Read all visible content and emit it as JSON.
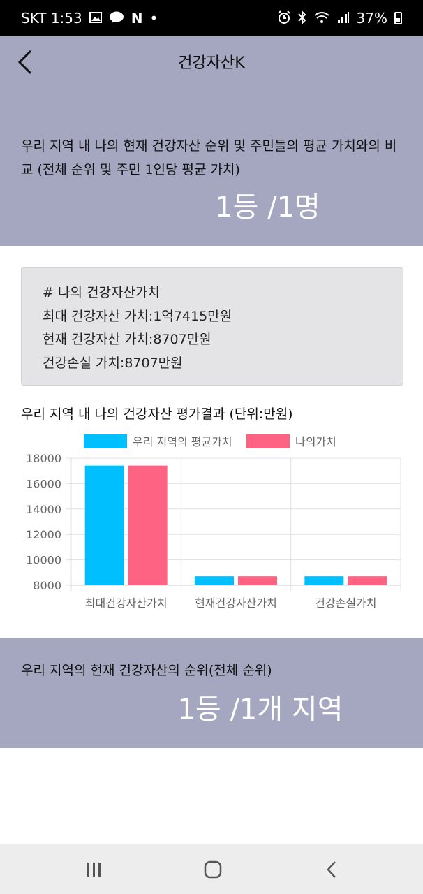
{
  "status_bar": {
    "carrier_time": "SKT 1:53",
    "n_badge": "N",
    "dot": "•",
    "battery": "37%",
    "icons": [
      "gallery-icon",
      "talk-icon",
      "alarm-icon",
      "bluetooth-icon",
      "wifi-icon",
      "signal-icon",
      "battery-icon"
    ]
  },
  "header": {
    "title": "건강자산K",
    "back_icon": "chevron-left-icon"
  },
  "region_rank": {
    "description": "우리 지역 내 나의 현재 건강자산 순위 및 주민들의 평균 가치와의 비교 (전체 순위 및 주민 1인당 평균 가치)",
    "value": "1등 /1명"
  },
  "asset_card": {
    "heading": "# 나의 건강자산가치",
    "max_value": "최대 건강자산 가치:1억7415만원",
    "current_value": "현재 건강자산 가치:8707만원",
    "loss_value": "건강손실 가치:8707만원"
  },
  "chart_heading": "우리 지역 내 나의 건강자산 평가결과 (단위:만원)",
  "chart_data": {
    "type": "bar",
    "categories": [
      "최대건강자산가치",
      "현재건강자산가치",
      "건강손실가치"
    ],
    "series": [
      {
        "name": "우리 지역의 평균가치",
        "color": "#00bfff",
        "values": [
          17415,
          8707,
          8707
        ]
      },
      {
        "name": "나의가치",
        "color": "#ff6384",
        "values": [
          17415,
          8707,
          8707
        ]
      }
    ],
    "y_ticks": [
      "18000",
      "16000",
      "14000",
      "12000",
      "10000",
      "8000"
    ],
    "ylim": [
      8000,
      18000
    ],
    "legend": "top",
    "grid": true
  },
  "district_rank": {
    "description": "우리 지역의 현재 건강자산의 순위(전체 순위)",
    "value": "1등 /1개 지역"
  },
  "nav": {
    "icons": [
      "recent-apps-icon",
      "home-icon",
      "back-icon"
    ]
  },
  "colors": {
    "band": "#a5a7c1",
    "card": "#e4e4e6",
    "series_avg": "#00bfff",
    "series_mine": "#ff6384"
  }
}
